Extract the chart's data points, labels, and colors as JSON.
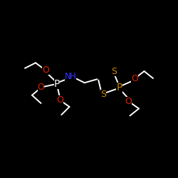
{
  "bg_color": "#000000",
  "atom_colors": {
    "bond": "#ffffff",
    "N": "#3333ff",
    "O": "#dd2200",
    "P_left": "#ffffff",
    "P_right": "#cc8800",
    "S": "#cc8800"
  },
  "figsize": [
    2.5,
    2.5
  ],
  "dpi": 100,
  "xlim": [
    0,
    10
  ],
  "ylim": [
    0,
    10
  ]
}
